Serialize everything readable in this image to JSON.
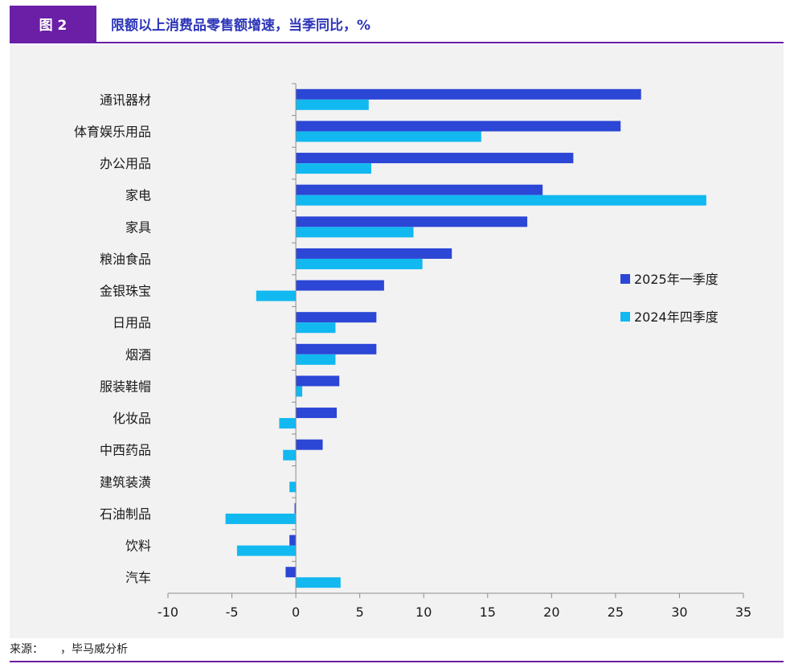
{
  "header": {
    "figure_label": "图 2",
    "title": "限额以上消费品零售额增速，当季同比，%"
  },
  "footer": {
    "source": "来源：　　，毕马威分析"
  },
  "colors": {
    "accent": "#6a1fa6",
    "title": "#2c35b8",
    "series_2025q1": "#2c46d6",
    "series_2024q4": "#12b8f0"
  },
  "chart_data": {
    "type": "bar",
    "orientation": "horizontal",
    "categories": [
      "通讯器材",
      "体育娱乐用品",
      "办公用品",
      "家电",
      "家具",
      "粮油食品",
      "金银珠宝",
      "日用品",
      "烟酒",
      "服装鞋帽",
      "化妆品",
      "中西药品",
      "建筑装潢",
      "石油制品",
      "饮料",
      "汽车"
    ],
    "series": [
      {
        "name": "2025年一季度",
        "values": [
          27.0,
          25.4,
          21.7,
          19.3,
          18.1,
          12.2,
          6.9,
          6.3,
          6.3,
          3.4,
          3.2,
          2.1,
          0.0,
          -0.1,
          -0.5,
          -0.8
        ]
      },
      {
        "name": "2024年四季度",
        "values": [
          5.7,
          14.5,
          5.9,
          32.1,
          9.2,
          9.9,
          -3.1,
          3.1,
          3.1,
          0.5,
          -1.3,
          -1.0,
          -0.5,
          -5.5,
          -4.6,
          3.5
        ]
      }
    ],
    "xlim": [
      -10,
      35
    ],
    "xticks": [
      -10,
      -5,
      0,
      5,
      10,
      15,
      20,
      25,
      30,
      35
    ],
    "legend_position": "right",
    "grid": false
  }
}
